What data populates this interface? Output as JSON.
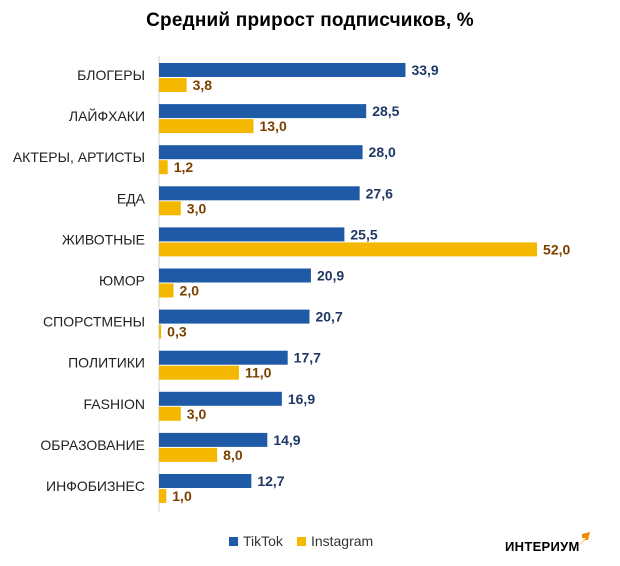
{
  "chart_data": {
    "type": "bar",
    "orientation": "horizontal",
    "title": "Средний прирост подписчиков, %",
    "categories": [
      "БЛОГЕРЫ",
      "ЛАЙФХАКИ",
      "АКТЕРЫ, АРТИСТЫ",
      "ЕДА",
      "ЖИВОТНЫЕ",
      "ЮМОР",
      "СПОРСТМЕНЫ",
      "ПОЛИТИКИ",
      "FASHION",
      "ОБРАЗОВАНИЕ",
      "ИНФОБИЗНЕС"
    ],
    "series": [
      {
        "name": "TikTok",
        "color": "#1f5aa6",
        "values": [
          33.9,
          28.5,
          28.0,
          27.6,
          25.5,
          20.9,
          20.7,
          17.7,
          16.9,
          14.9,
          12.7
        ],
        "labels": [
          "33,9",
          "28,5",
          "28,0",
          "27,6",
          "25,5",
          "20,9",
          "20,7",
          "17,7",
          "16,9",
          "14,9",
          "12,7"
        ]
      },
      {
        "name": "Instagram",
        "color": "#f5b800",
        "values": [
          3.8,
          13.0,
          1.2,
          3.0,
          52.0,
          2.0,
          0.3,
          11.0,
          3.0,
          8.0,
          1.0
        ],
        "labels": [
          "3,8",
          "13,0",
          "1,2",
          "3,0",
          "52,0",
          "2,0",
          "0,3",
          "11,0",
          "3,0",
          "8,0",
          "1,0"
        ]
      }
    ],
    "xlim": [
      0,
      52
    ],
    "grid": false,
    "legend": "bottom"
  },
  "branding": {
    "logo_text": "ИНТЕРИУМ",
    "logo_accent": "#f08a00",
    "logo_icon": "arrow-up-right-icon"
  }
}
